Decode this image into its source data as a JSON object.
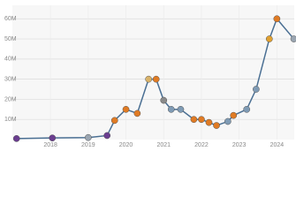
{
  "chart_data": {
    "type": "line",
    "x": [
      2017.1,
      2018.05,
      2019.0,
      2019.5,
      2019.7,
      2020.0,
      2020.3,
      2020.6,
      2020.8,
      2021.0,
      2021.2,
      2021.45,
      2021.8,
      2022.0,
      2022.2,
      2022.4,
      2022.7,
      2022.85,
      2023.2,
      2023.45,
      2023.8,
      2024.0,
      2024.45
    ],
    "series": [
      {
        "color": "#4a6f93",
        "values": [
          500000,
          800000,
          1000000,
          2000000,
          9500000,
          15000000,
          13000000,
          30000000,
          30000000,
          19500000,
          15000000,
          15000000,
          10000000,
          10000000,
          8500000,
          7000000,
          9000000,
          12000000,
          15000000,
          25000000,
          50000000,
          60000000,
          50000000
        ],
        "marker_colors": [
          "#6a3d8f",
          "#6a3d8f",
          "#9aa5b1",
          "#6a3d8f",
          "#e07b24",
          "#e07b24",
          "#e07b24",
          "#d9b36a",
          "#e07b24",
          "#8a8a8a",
          "#7f9bb5",
          "#7f9bb5",
          "#e07b24",
          "#e07b24",
          "#e07b24",
          "#e07b24",
          "#7f9bb5",
          "#e07b24",
          "#7f9bb5",
          "#7f9bb5",
          "#e0a030",
          "#e07b24",
          "#9aa5b1"
        ]
      }
    ],
    "xlim": [
      2016.99,
      2024.46
    ],
    "xticks": [
      2018,
      2019,
      2020,
      2021,
      2022,
      2023,
      2024
    ],
    "ylim": [
      0,
      66700000
    ],
    "yticks": [
      {
        "value": 10000000,
        "label": "10M"
      },
      {
        "value": 20000000,
        "label": "20M"
      },
      {
        "value": 30000000,
        "label": "30M"
      },
      {
        "value": 40000000,
        "label": "40M"
      },
      {
        "value": 50000000,
        "label": "50M"
      },
      {
        "value": 60000000,
        "label": "60M"
      }
    ],
    "grid": true
  }
}
